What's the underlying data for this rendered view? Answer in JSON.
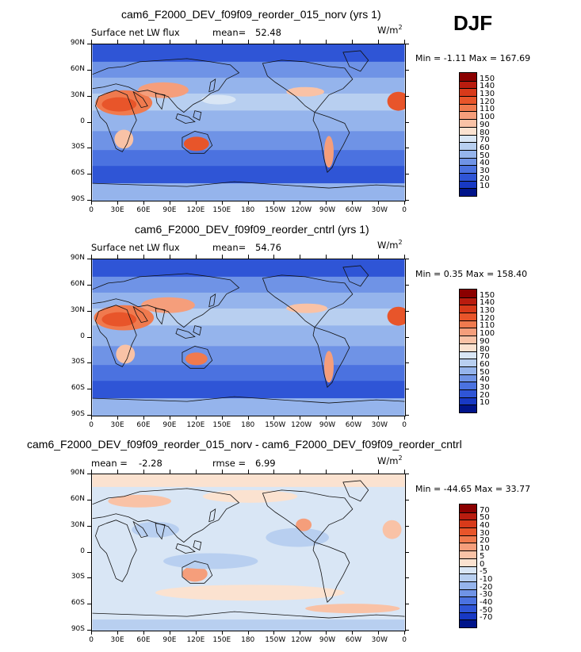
{
  "season": "DJF",
  "units_html": "W/m",
  "units_sup": "2",
  "lat_labels": [
    "90N",
    "60N",
    "30N",
    "0",
    "30S",
    "60S",
    "90S"
  ],
  "lon_labels": [
    "0",
    "30E",
    "60E",
    "90E",
    "120E",
    "150E",
    "180",
    "150W",
    "120W",
    "90W",
    "60W",
    "30W",
    "0"
  ],
  "panels": [
    {
      "id": "test",
      "title": "cam6_F2000_DEV_f09f09_reorder_015_norv (yrs 1)",
      "variable": "Surface net LW flux",
      "stat1_label": "mean=",
      "stat1_value": "52.48",
      "stat2_label": "",
      "stat2_value": "",
      "minmax": "Min =   -1.11  Max = 167.69",
      "levels": [
        "150",
        "140",
        "130",
        "120",
        "110",
        "100",
        "90",
        "80",
        "70",
        "60",
        "50",
        "40",
        "30",
        "20",
        "10"
      ],
      "colors": [
        "#8b0000",
        "#b91c0f",
        "#d83a1a",
        "#e8552a",
        "#f07a4e",
        "#f59e7b",
        "#f9c2a6",
        "#fbe2d0",
        "#d9e6f5",
        "#b8cff0",
        "#95b4ec",
        "#6f93e6",
        "#4b72e0",
        "#2f55d6",
        "#1839c4",
        "#00148a"
      ]
    },
    {
      "id": "control",
      "title": "cam6_F2000_DEV_f09f09_reorder_cntrl (yrs 1)",
      "variable": "Surface net LW flux",
      "stat1_label": "mean=",
      "stat1_value": "54.76",
      "stat2_label": "",
      "stat2_value": "",
      "minmax": "Min =    0.35  Max = 158.40",
      "levels": [
        "150",
        "140",
        "130",
        "120",
        "110",
        "100",
        "90",
        "80",
        "70",
        "60",
        "50",
        "40",
        "30",
        "20",
        "10"
      ],
      "colors": [
        "#8b0000",
        "#b91c0f",
        "#d83a1a",
        "#e8552a",
        "#f07a4e",
        "#f59e7b",
        "#f9c2a6",
        "#fbe2d0",
        "#d9e6f5",
        "#b8cff0",
        "#95b4ec",
        "#6f93e6",
        "#4b72e0",
        "#2f55d6",
        "#1839c4",
        "#00148a"
      ]
    },
    {
      "id": "diff",
      "title": "cam6_F2000_DEV_f09f09_reorder_015_norv - cam6_F2000_DEV_f09f09_reorder_cntrl",
      "variable": "",
      "stat1_label": "mean =",
      "stat1_value": "-2.28",
      "stat2_label": "rmse =",
      "stat2_value": "6.99",
      "minmax": "Min = -44.65  Max =  33.77",
      "levels": [
        "70",
        "50",
        "40",
        "30",
        "20",
        "10",
        "5",
        "0",
        "-5",
        "-10",
        "-20",
        "-30",
        "-40",
        "-50",
        "-70"
      ],
      "colors": [
        "#8b0000",
        "#b91c0f",
        "#d83a1a",
        "#e8552a",
        "#f07a4e",
        "#f59e7b",
        "#f9c2a6",
        "#fbe2d0",
        "#d9e6f5",
        "#b8cff0",
        "#95b4ec",
        "#6f93e6",
        "#4b72e0",
        "#2f55d6",
        "#1839c4",
        "#00148a"
      ]
    }
  ]
}
